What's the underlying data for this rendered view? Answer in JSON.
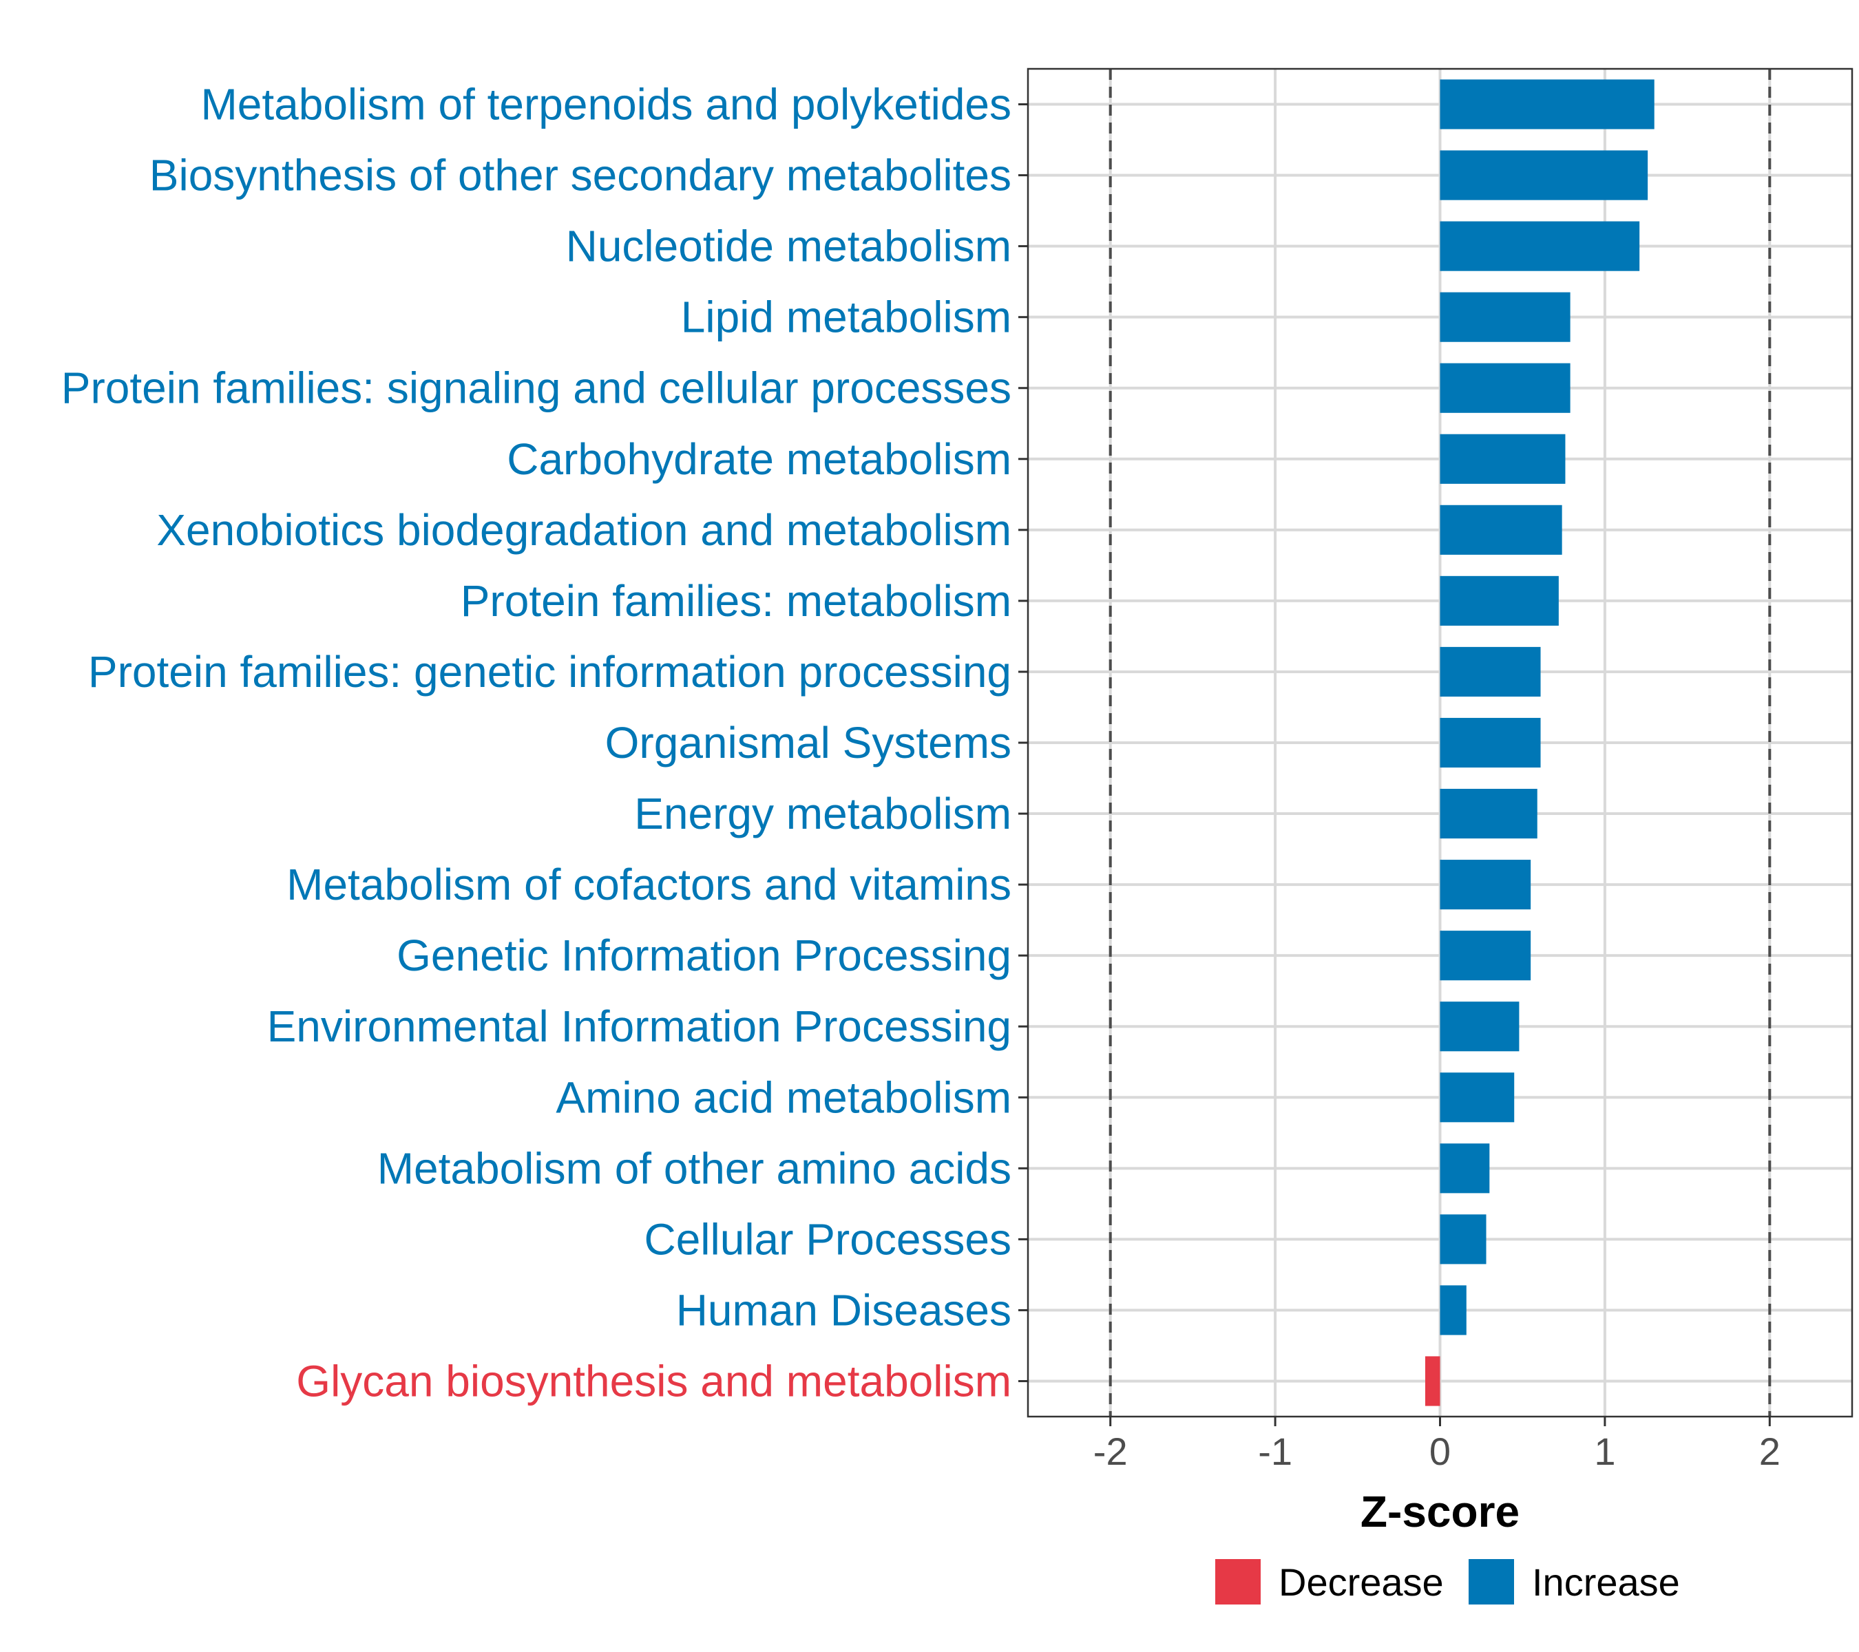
{
  "chart_data": {
    "type": "bar",
    "orientation": "horizontal",
    "xlabel": "Z-score",
    "xlim": [
      -2.5,
      2.5
    ],
    "x_ticks": [
      -2,
      -1,
      0,
      1,
      2
    ],
    "x_tick_labels": [
      "-2",
      "-1",
      "0",
      "1",
      "2"
    ],
    "reference_lines": [
      -2,
      2
    ],
    "grid": true,
    "categories": [
      "Metabolism of terpenoids and polyketides",
      "Biosynthesis of other secondary metabolites",
      "Nucleotide metabolism",
      "Lipid metabolism",
      "Protein families: signaling and cellular processes",
      "Carbohydrate metabolism",
      "Xenobiotics biodegradation and metabolism",
      "Protein families: metabolism",
      "Protein families: genetic information processing",
      "Organismal Systems",
      "Energy metabolism",
      "Metabolism of cofactors and vitamins",
      "Genetic Information Processing",
      "Environmental Information Processing",
      "Amino acid metabolism",
      "Metabolism of other amino acids",
      "Cellular Processes",
      "Human Diseases",
      "Glycan biosynthesis and metabolism"
    ],
    "values": [
      1.3,
      1.26,
      1.21,
      0.79,
      0.79,
      0.76,
      0.74,
      0.72,
      0.61,
      0.61,
      0.59,
      0.55,
      0.55,
      0.48,
      0.45,
      0.3,
      0.28,
      0.16,
      -0.09
    ],
    "groups": [
      "Increase",
      "Increase",
      "Increase",
      "Increase",
      "Increase",
      "Increase",
      "Increase",
      "Increase",
      "Increase",
      "Increase",
      "Increase",
      "Increase",
      "Increase",
      "Increase",
      "Increase",
      "Increase",
      "Increase",
      "Increase",
      "Decrease"
    ],
    "legend": [
      {
        "label": "Decrease",
        "color": "#E63946"
      },
      {
        "label": "Increase",
        "color": "#0077B6"
      }
    ],
    "legend_position": "bottom",
    "colors": {
      "Increase": "#0077B6",
      "Decrease": "#E63946"
    }
  }
}
